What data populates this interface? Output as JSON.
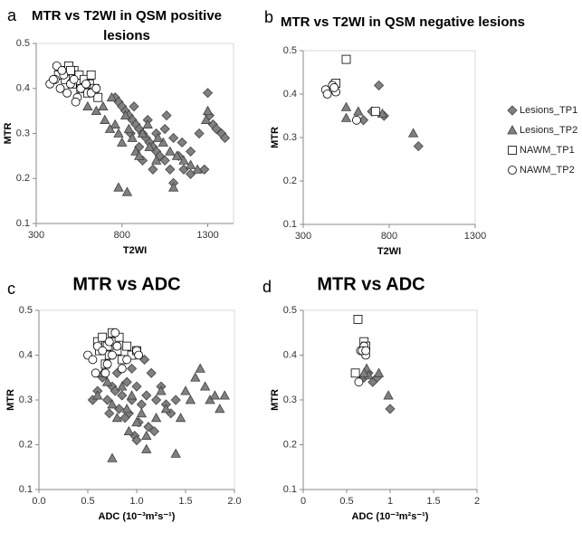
{
  "chart_data": [
    {
      "type": "scatter",
      "label": "a",
      "title": [
        "MTR vs T2WI in QSM positive",
        "lesions"
      ],
      "xlabel": "T2WI",
      "ylabel": "MTR",
      "xlim": [
        300,
        1450
      ],
      "xticks": [
        300,
        800,
        1300
      ],
      "ylim": [
        0.1,
        0.5
      ],
      "yticks": [
        0.1,
        0.2,
        0.3,
        0.4,
        0.5
      ],
      "series": [
        {
          "marker": "diamond",
          "color": "#808080",
          "x": [
            760,
            780,
            800,
            820,
            840,
            860,
            880,
            900,
            920,
            940,
            960,
            980,
            1000,
            1020,
            1050,
            1080,
            1100,
            1130,
            1160,
            1200,
            1250,
            1280,
            1300,
            1310,
            1330,
            1350,
            1380,
            1400,
            850,
            900,
            950,
            1000,
            1050,
            1100,
            1150,
            920,
            980,
            1060,
            870,
            1200
          ],
          "values": [
            0.38,
            0.37,
            0.36,
            0.35,
            0.34,
            0.33,
            0.32,
            0.31,
            0.3,
            0.29,
            0.28,
            0.27,
            0.26,
            0.25,
            0.24,
            0.22,
            0.19,
            0.25,
            0.22,
            0.21,
            0.3,
            0.22,
            0.39,
            0.34,
            0.32,
            0.31,
            0.3,
            0.29,
            0.3,
            0.27,
            0.33,
            0.3,
            0.31,
            0.29,
            0.28,
            0.24,
            0.22,
            0.34,
            0.36,
            0.26
          ]
        },
        {
          "marker": "triangle",
          "color": "#808080",
          "x": [
            600,
            650,
            700,
            740,
            760,
            780,
            800,
            820,
            840,
            860,
            880,
            900,
            920,
            960,
            1000,
            1040,
            1080,
            1120,
            1160,
            1200,
            1240,
            1290,
            1300,
            780,
            830,
            1100,
            690,
            730,
            950,
            1010
          ],
          "values": [
            0.36,
            0.35,
            0.33,
            0.38,
            0.32,
            0.3,
            0.28,
            0.34,
            0.31,
            0.29,
            0.26,
            0.25,
            0.3,
            0.27,
            0.24,
            0.28,
            0.26,
            0.25,
            0.24,
            0.23,
            0.22,
            0.33,
            0.35,
            0.18,
            0.17,
            0.18,
            0.36,
            0.31,
            0.32,
            0.29
          ]
        },
        {
          "marker": "square",
          "color": "#ffffff",
          "x": [
            430,
            460,
            490,
            520,
            550,
            580,
            610,
            640,
            470,
            510,
            560,
            600,
            660,
            620,
            500
          ],
          "values": [
            0.43,
            0.44,
            0.45,
            0.44,
            0.43,
            0.42,
            0.41,
            0.4,
            0.42,
            0.41,
            0.4,
            0.39,
            0.38,
            0.43,
            0.44
          ]
        },
        {
          "marker": "circle",
          "color": "#ffffff",
          "x": [
            380,
            410,
            420,
            440,
            460,
            480,
            500,
            520,
            540,
            560,
            590,
            620,
            650,
            450,
            530,
            400
          ],
          "values": [
            0.41,
            0.42,
            0.45,
            0.4,
            0.43,
            0.39,
            0.41,
            0.42,
            0.38,
            0.4,
            0.41,
            0.39,
            0.4,
            0.44,
            0.37,
            0.42
          ]
        }
      ]
    },
    {
      "type": "scatter",
      "label": "b",
      "title": [
        "MTR vs T2WI in QSM negative lesions"
      ],
      "xlabel": "T2WI",
      "ylabel": "MTR",
      "xlim": [
        300,
        1300
      ],
      "xticks": [
        300,
        800,
        1300
      ],
      "ylim": [
        0.1,
        0.5
      ],
      "yticks": [
        0.1,
        0.2,
        0.3,
        0.4,
        0.5
      ],
      "series": [
        {
          "name": "Lesions_TP1",
          "marker": "diamond",
          "color": "#808080",
          "x": [
            740,
            770,
            650,
            700,
            970
          ],
          "values": [
            0.42,
            0.35,
            0.34,
            0.36,
            0.28
          ]
        },
        {
          "name": "Lesions_TP2",
          "marker": "triangle",
          "color": "#808080",
          "x": [
            550,
            620,
            550,
            940,
            760
          ],
          "values": [
            0.37,
            0.36,
            0.345,
            0.31,
            0.355
          ]
        },
        {
          "name": "NAWM_TP1",
          "marker": "square",
          "color": "#ffffff",
          "x": [
            550,
            480,
            490,
            720
          ],
          "values": [
            0.48,
            0.42,
            0.425,
            0.36
          ]
        },
        {
          "name": "NAWM_TP2",
          "marker": "circle",
          "color": "#ffffff",
          "x": [
            430,
            440,
            490,
            470,
            610,
            480
          ],
          "values": [
            0.41,
            0.4,
            0.405,
            0.42,
            0.34,
            0.415
          ]
        }
      ]
    },
    {
      "type": "scatter",
      "label": "c",
      "title": [
        "MTR vs ADC"
      ],
      "xlabel": "ADC (10⁻³m²s⁻¹)",
      "ylabel": "MTR",
      "xlim": [
        0,
        2
      ],
      "xticks": [
        {
          "value": 0,
          "label": "0.0"
        },
        0.5,
        {
          "value": 1,
          "label": "1.0"
        },
        1.5,
        {
          "value": 2,
          "label": "2.0"
        }
      ],
      "ylim": [
        0.1,
        0.5
      ],
      "yticks": [
        0.1,
        0.2,
        0.3,
        0.4,
        0.5
      ],
      "series": [
        {
          "marker": "diamond",
          "color": "#808080",
          "x": [
            0.6,
            0.65,
            0.7,
            0.75,
            0.8,
            0.82,
            0.85,
            0.9,
            0.92,
            0.95,
            0.98,
            1.0,
            1.02,
            1.05,
            1.08,
            1.1,
            1.12,
            1.15,
            1.2,
            1.25,
            1.3,
            1.35,
            0.55,
            0.72,
            0.88,
            1.0,
            1.18,
            0.78,
            0.95,
            1.4
          ],
          "values": [
            0.32,
            0.35,
            0.3,
            0.33,
            0.36,
            0.28,
            0.31,
            0.34,
            0.27,
            0.3,
            0.22,
            0.33,
            0.25,
            0.29,
            0.39,
            0.31,
            0.24,
            0.36,
            0.3,
            0.33,
            0.29,
            0.27,
            0.3,
            0.27,
            0.26,
            0.21,
            0.23,
            0.32,
            0.37,
            0.3
          ]
        },
        {
          "marker": "triangle",
          "color": "#808080",
          "x": [
            0.6,
            0.7,
            0.75,
            0.8,
            0.85,
            0.9,
            0.95,
            1.0,
            1.05,
            1.1,
            1.2,
            1.3,
            1.4,
            1.5,
            1.55,
            1.6,
            1.65,
            1.7,
            1.75,
            1.8,
            1.85,
            1.9,
            0.75,
            1.1,
            0.65,
            1.45,
            1.25,
            0.92
          ],
          "values": [
            0.31,
            0.34,
            0.29,
            0.26,
            0.33,
            0.28,
            0.31,
            0.25,
            0.27,
            0.22,
            0.26,
            0.28,
            0.18,
            0.32,
            0.3,
            0.35,
            0.37,
            0.33,
            0.3,
            0.31,
            0.28,
            0.31,
            0.17,
            0.19,
            0.36,
            0.26,
            0.32,
            0.23
          ]
        },
        {
          "marker": "square",
          "color": "#ffffff",
          "x": [
            0.6,
            0.62,
            0.65,
            0.7,
            0.72,
            0.75,
            0.78,
            0.8,
            0.85,
            0.9,
            0.95,
            1.0,
            0.68,
            0.82
          ],
          "values": [
            0.43,
            0.41,
            0.44,
            0.42,
            0.4,
            0.45,
            0.43,
            0.41,
            0.39,
            0.42,
            0.4,
            0.41,
            0.38,
            0.44
          ]
        },
        {
          "marker": "circle",
          "color": "#ffffff",
          "x": [
            0.5,
            0.55,
            0.6,
            0.65,
            0.7,
            0.72,
            0.75,
            0.8,
            0.85,
            0.9,
            1.0,
            1.02,
            0.58,
            0.68,
            0.78
          ],
          "values": [
            0.4,
            0.39,
            0.42,
            0.41,
            0.38,
            0.43,
            0.4,
            0.42,
            0.37,
            0.39,
            0.41,
            0.4,
            0.36,
            0.36,
            0.45
          ]
        }
      ]
    },
    {
      "type": "scatter",
      "label": "d",
      "title": [
        "MTR vs ADC"
      ],
      "xlabel": "ADC (10⁻³m²s⁻¹)",
      "ylabel": "MTR",
      "xlim": [
        0,
        2
      ],
      "xticks": [
        0,
        0.5,
        1,
        1.5,
        2
      ],
      "ylim": [
        0.1,
        0.5
      ],
      "yticks": [
        0.1,
        0.2,
        0.3,
        0.4,
        0.5
      ],
      "series": [
        {
          "marker": "diamond",
          "color": "#808080",
          "x": [
            0.75,
            0.8,
            0.7,
            1.0,
            0.85
          ],
          "values": [
            0.36,
            0.34,
            0.35,
            0.28,
            0.35
          ]
        },
        {
          "marker": "triangle",
          "color": "#808080",
          "x": [
            0.73,
            0.75,
            0.7,
            0.98,
            0.87
          ],
          "values": [
            0.37,
            0.355,
            0.36,
            0.31,
            0.36
          ]
        },
        {
          "marker": "square",
          "color": "#ffffff",
          "x": [
            0.63,
            0.7,
            0.72,
            0.6
          ],
          "values": [
            0.48,
            0.43,
            0.42,
            0.36
          ]
        },
        {
          "marker": "circle",
          "color": "#ffffff",
          "x": [
            0.66,
            0.72,
            0.7,
            0.64,
            0.68,
            0.72
          ],
          "values": [
            0.41,
            0.4,
            0.42,
            0.34,
            0.41,
            0.41
          ]
        }
      ]
    }
  ]
}
